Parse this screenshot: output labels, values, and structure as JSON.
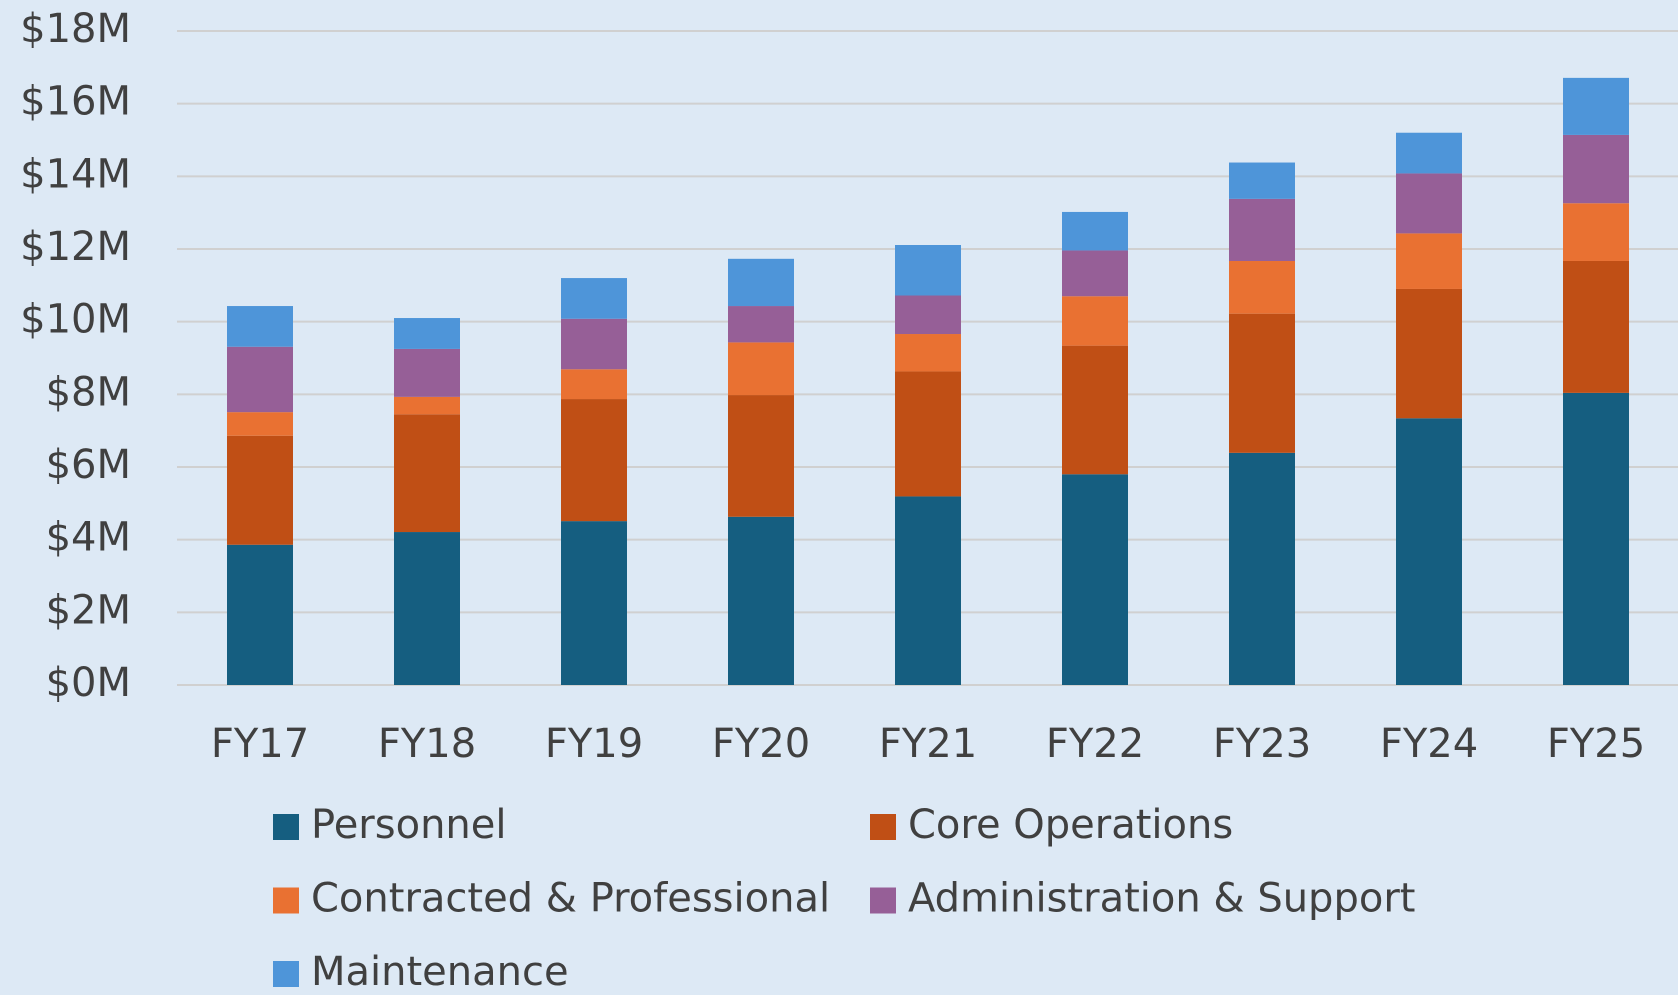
{
  "chart_data": {
    "type": "stacked_bar",
    "categories": [
      "FY17",
      "FY18",
      "FY19",
      "FY20",
      "FY21",
      "FY22",
      "FY23",
      "FY24",
      "FY25"
    ],
    "series": [
      {
        "name": "Personnel",
        "color": "#155e80",
        "values": [
          3.86,
          4.21,
          4.51,
          4.63,
          5.19,
          5.8,
          6.39,
          7.34,
          8.04
        ]
      },
      {
        "name": "Core Operations",
        "color": "#c04f15",
        "values": [
          3.0,
          3.24,
          3.36,
          3.35,
          3.44,
          3.54,
          3.83,
          3.56,
          3.63
        ]
      },
      {
        "name": "Contracted & Professional",
        "color": "#e97132",
        "values": [
          0.65,
          0.48,
          0.82,
          1.45,
          1.03,
          1.36,
          1.45,
          1.53,
          1.59
        ]
      },
      {
        "name": "Administration & Support",
        "color": "#965f97",
        "values": [
          1.8,
          1.32,
          1.39,
          1.0,
          1.06,
          1.26,
          1.71,
          1.65,
          1.88
        ]
      },
      {
        "name": "Maintenance",
        "color": "#4e95d9",
        "values": [
          1.12,
          0.85,
          1.12,
          1.3,
          1.39,
          1.06,
          1.0,
          1.12,
          1.57
        ]
      }
    ],
    "ylim": [
      0,
      18
    ],
    "yticks": [
      {
        "value": 0,
        "label": "$0M"
      },
      {
        "value": 2,
        "label": "$2M"
      },
      {
        "value": 4,
        "label": "$4M"
      },
      {
        "value": 6,
        "label": "$6M"
      },
      {
        "value": 8,
        "label": "$8M"
      },
      {
        "value": 10,
        "label": "$10M"
      },
      {
        "value": 12,
        "label": "$12M"
      },
      {
        "value": 14,
        "label": "$14M"
      },
      {
        "value": 16,
        "label": "$16M"
      },
      {
        "value": 18,
        "label": "$18M"
      }
    ],
    "grid": true,
    "legend": "bottom"
  }
}
